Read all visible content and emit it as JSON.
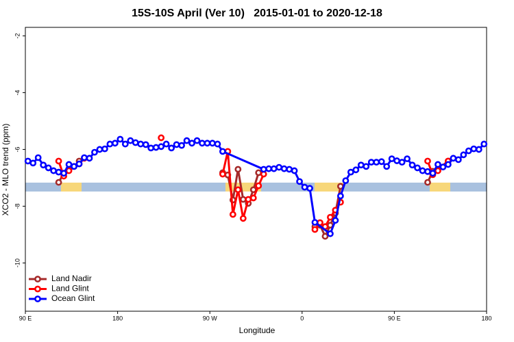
{
  "chart_data": {
    "type": "line",
    "title": "15S-10S April (Ver 10)   2015-01-01 to 2020-12-18",
    "x_label": "Longitude",
    "y_label": "XCO2 - MLO trend (ppm)",
    "xlim": [
      90,
      540
    ],
    "ylim": [
      -11.7,
      -1.7
    ],
    "xticks": [
      {
        "value": 90,
        "label": "90 E"
      },
      {
        "value": 180,
        "label": "180"
      },
      {
        "value": 270,
        "label": "90 W"
      },
      {
        "value": 360,
        "label": "0"
      },
      {
        "value": 450,
        "label": "90 E"
      },
      {
        "value": 540,
        "label": "180"
      }
    ],
    "yticks": [
      -2,
      -4,
      -6,
      -8,
      -10
    ],
    "legend_position": "bottom-left",
    "series": [
      {
        "name": "Land Nadir",
        "color": "#a52a2a",
        "x": [
          122.5,
          127.5,
          132.5,
          137.5,
          142.5,
          210,
          282.5,
          287.5,
          292.5,
          297.5,
          302.5,
          307.5,
          312.5,
          317.5,
          345,
          372.5,
          377.5,
          382.5,
          387.5,
          392.5,
          397.5,
          440,
          482.5,
          487.5,
          492.5,
          502.5
        ],
        "values": [
          -7.16,
          -6.84,
          -6.68,
          -6.6,
          -6.41,
          null,
          -6.82,
          -6.9,
          -7.78,
          -6.7,
          -7.76,
          -7.9,
          -7.42,
          -6.82,
          null,
          -8.72,
          -8.67,
          -9.06,
          -8.67,
          -8.24,
          -7.3,
          null,
          -7.16,
          -6.77,
          -6.7,
          -6.41
        ]
      },
      {
        "name": "Land Glint",
        "color": "#ff0000",
        "x": [
          122.5,
          127.5,
          132.5,
          142.5,
          147.5,
          180,
          222.5,
          250,
          282.5,
          287.5,
          292.5,
          297.5,
          302.5,
          307.5,
          312.5,
          317.5,
          322.5,
          345,
          372.5,
          377.5,
          382.5,
          387.5,
          392.5,
          397.5,
          440,
          482.5,
          487.5,
          492.5,
          502.5
        ],
        "values": [
          -6.41,
          -6.94,
          -6.75,
          -6.51,
          -6.31,
          null,
          -5.59,
          null,
          -6.87,
          -6.07,
          -8.29,
          -7.42,
          -8.43,
          -7.76,
          -7.71,
          -7.28,
          -6.87,
          null,
          -8.82,
          -8.58,
          -8.72,
          -8.39,
          -8.14,
          -7.86,
          null,
          -6.41,
          -6.89,
          -6.75,
          -6.41
        ]
      },
      {
        "name": "Ocean Glint",
        "color": "#0000ff",
        "x": [
          92.5,
          97.5,
          102.5,
          107.5,
          112.5,
          117.5,
          122.5,
          127.5,
          132.5,
          137.5,
          142.5,
          147.5,
          152.5,
          157.5,
          162.5,
          167.5,
          172.5,
          177.5,
          182.5,
          187.5,
          192.5,
          197.5,
          202.5,
          207.5,
          212.5,
          217.5,
          222.5,
          227.5,
          232.5,
          237.5,
          242.5,
          247.5,
          252.5,
          257.5,
          262.5,
          267.5,
          272.5,
          277.5,
          282.5,
          322.5,
          327.5,
          332.5,
          337.5,
          342.5,
          347.5,
          352.5,
          357.5,
          362.5,
          367.5,
          372.5,
          387.5,
          392.5,
          397.5,
          402.5,
          407.5,
          412.5,
          417.5,
          422.5,
          427.5,
          432.5,
          437.5,
          442.5,
          447.5,
          452.5,
          457.5,
          462.5,
          467.5,
          472.5,
          477.5,
          482.5,
          487.5,
          492.5,
          497.5,
          502.5,
          507.5,
          512.5,
          517.5,
          522.5,
          527.5,
          532.5,
          537.5
        ],
        "values": [
          -6.41,
          -6.48,
          -6.29,
          -6.55,
          -6.65,
          -6.75,
          -6.8,
          -6.84,
          -6.53,
          -6.6,
          -6.51,
          -6.29,
          -6.31,
          -6.1,
          -6.0,
          -5.98,
          -5.81,
          -5.78,
          -5.64,
          -5.81,
          -5.69,
          -5.76,
          -5.81,
          -5.83,
          -5.95,
          -5.93,
          -5.9,
          -5.81,
          -5.95,
          -5.83,
          -5.86,
          -5.69,
          -5.78,
          -5.69,
          -5.78,
          -5.78,
          -5.78,
          -5.81,
          -6.07,
          -6.7,
          -6.68,
          -6.68,
          -6.63,
          -6.68,
          -6.7,
          -6.75,
          -7.13,
          -7.33,
          -7.37,
          -8.57,
          -8.97,
          -8.5,
          -7.64,
          -7.1,
          -6.8,
          -6.72,
          -6.55,
          -6.6,
          -6.45,
          -6.45,
          -6.43,
          -6.6,
          -6.33,
          -6.4,
          -6.45,
          -6.33,
          -6.55,
          -6.65,
          -6.75,
          -6.78,
          -6.84,
          -6.53,
          -6.62,
          -6.53,
          -6.31,
          -6.36,
          -6.19,
          -6.05,
          -5.98,
          -6.0,
          -5.81
        ]
      }
    ]
  }
}
